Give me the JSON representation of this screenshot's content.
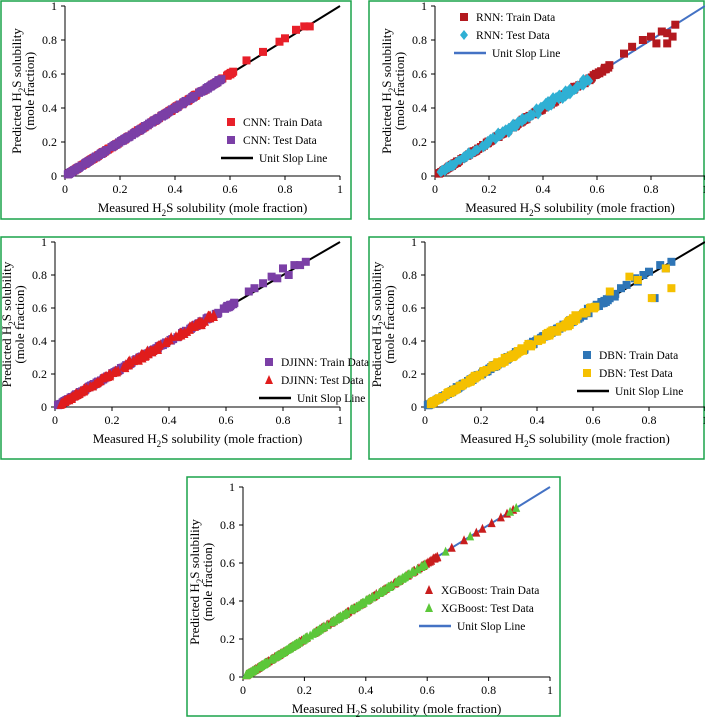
{
  "figure": {
    "xlabel_prefix": "Measured H",
    "xlabel_sub": "2",
    "xlabel_suffix": "S solubility (mole fraction)",
    "ylabel_line1_prefix": "Predicted H",
    "ylabel_line1_sub": "2",
    "ylabel_line1_suffix": "S solubility",
    "ylabel_line2": "(mole fraction)",
    "axis_color": "#000000",
    "frame_color": "#1aa34a"
  },
  "chart_data": [
    {
      "id": "cnn",
      "type": "scatter",
      "xlim": [
        0,
        1
      ],
      "ylim": [
        0,
        1
      ],
      "xticks": [
        "0",
        "0.2",
        "0.4",
        "0.6",
        "0.8",
        "1"
      ],
      "yticks": [
        "0",
        "0.2",
        "0.4",
        "0.6",
        "0.8",
        "1"
      ],
      "tick_values": [
        0,
        0.2,
        0.4,
        0.6,
        0.8,
        1
      ],
      "legend_position": "bottom-right",
      "series": [
        {
          "name": "CNN: Train Data",
          "marker": "square",
          "color": "#e8202a",
          "x_range": [
            0.01,
            0.62
          ],
          "spread": 0.006,
          "extra": [
            [
              0.66,
              0.68
            ],
            [
              0.72,
              0.73
            ],
            [
              0.78,
              0.79
            ],
            [
              0.8,
              0.81
            ],
            [
              0.84,
              0.86
            ],
            [
              0.87,
              0.88
            ],
            [
              0.89,
              0.88
            ]
          ]
        },
        {
          "name": "CNN: Test Data",
          "marker": "square",
          "color": "#7b3fa6",
          "x_range": [
            0.01,
            0.58
          ],
          "spread": 0.006,
          "extra": []
        },
        {
          "name": "Unit Slop Line",
          "marker": "line",
          "color": "#000000",
          "points": [
            [
              0,
              0
            ],
            [
              1,
              1
            ]
          ]
        }
      ]
    },
    {
      "id": "rnn",
      "type": "scatter",
      "xlim": [
        0,
        1
      ],
      "ylim": [
        0,
        1
      ],
      "xticks": [
        "0",
        "0.2",
        "0.4",
        "0.6",
        "0.8",
        "1"
      ],
      "yticks": [
        "0",
        "0.2",
        "0.4",
        "0.6",
        "0.8",
        "1"
      ],
      "tick_values": [
        0,
        0.2,
        0.4,
        0.6,
        0.8,
        1
      ],
      "legend_position": "top-left",
      "series": [
        {
          "name": "RNN: Train Data",
          "marker": "square",
          "color": "#b3191f",
          "x_range": [
            0.01,
            0.65
          ],
          "spread": 0.01,
          "extra": [
            [
              0.7,
              0.72
            ],
            [
              0.73,
              0.76
            ],
            [
              0.77,
              0.8
            ],
            [
              0.8,
              0.82
            ],
            [
              0.82,
              0.78
            ],
            [
              0.84,
              0.85
            ],
            [
              0.86,
              0.84
            ],
            [
              0.88,
              0.82
            ],
            [
              0.89,
              0.89
            ],
            [
              0.86,
              0.78
            ]
          ]
        },
        {
          "name": "RNN: Test Data",
          "marker": "diamond",
          "color": "#2fb0d4",
          "x_range": [
            0.02,
            0.58
          ],
          "spread": 0.035,
          "extra": []
        },
        {
          "name": "Unit Slop Line",
          "marker": "line",
          "color": "#4472c4",
          "points": [
            [
              0,
              0
            ],
            [
              1,
              1
            ]
          ]
        }
      ]
    },
    {
      "id": "djinn",
      "type": "scatter",
      "xlim": [
        0,
        1
      ],
      "ylim": [
        0,
        1
      ],
      "xticks": [
        "0",
        "0.2",
        "0.4",
        "0.6",
        "0.8",
        "1"
      ],
      "yticks": [
        "0",
        "0.2",
        "0.4",
        "0.6",
        "0.8",
        "1"
      ],
      "tick_values": [
        0,
        0.2,
        0.4,
        0.6,
        0.8,
        1
      ],
      "legend_position": "bottom-right",
      "series": [
        {
          "name": "DJINN: Train Data",
          "marker": "square",
          "color": "#7b3fa6",
          "x_range": [
            0.01,
            0.65
          ],
          "spread": 0.01,
          "extra": [
            [
              0.68,
              0.7
            ],
            [
              0.7,
              0.72
            ],
            [
              0.73,
              0.75
            ],
            [
              0.76,
              0.79
            ],
            [
              0.78,
              0.78
            ],
            [
              0.8,
              0.84
            ],
            [
              0.82,
              0.8
            ],
            [
              0.84,
              0.86
            ],
            [
              0.86,
              0.86
            ],
            [
              0.88,
              0.88
            ]
          ]
        },
        {
          "name": "DJINN: Test Data",
          "marker": "triangle",
          "color": "#e01c1c",
          "x_range": [
            0.02,
            0.56
          ],
          "spread": 0.03,
          "extra": []
        },
        {
          "name": "Unit Slop Line",
          "marker": "line",
          "color": "#000000",
          "points": [
            [
              0,
              0
            ],
            [
              1,
              1
            ]
          ]
        }
      ]
    },
    {
      "id": "dbn",
      "type": "scatter",
      "xlim": [
        0,
        1
      ],
      "ylim": [
        0,
        1
      ],
      "xticks": [
        "0",
        "0.2",
        "0.4",
        "0.6",
        "0.8",
        "1"
      ],
      "yticks": [
        "0",
        "0.2",
        "0.4",
        "0.6",
        "0.8",
        "1"
      ],
      "tick_values": [
        0,
        0.2,
        0.4,
        0.6,
        0.8,
        1
      ],
      "legend_position": "bottom-right",
      "series": [
        {
          "name": "DBN: Train Data",
          "marker": "square",
          "color": "#2e75b6",
          "x_range": [
            0.01,
            0.68
          ],
          "spread": 0.018,
          "extra": [
            [
              0.7,
              0.72
            ],
            [
              0.72,
              0.74
            ],
            [
              0.75,
              0.78
            ],
            [
              0.78,
              0.8
            ],
            [
              0.8,
              0.82
            ],
            [
              0.82,
              0.66
            ],
            [
              0.84,
              0.86
            ],
            [
              0.86,
              0.84
            ],
            [
              0.88,
              0.88
            ],
            [
              0.76,
              0.76
            ]
          ]
        },
        {
          "name": "DBN: Test Data",
          "marker": "square",
          "color": "#f5c000",
          "x_range": [
            0.02,
            0.62
          ],
          "spread": 0.022,
          "extra": [
            [
              0.66,
              0.7
            ],
            [
              0.73,
              0.79
            ],
            [
              0.76,
              0.77
            ],
            [
              0.81,
              0.66
            ],
            [
              0.86,
              0.84
            ],
            [
              0.88,
              0.72
            ]
          ]
        },
        {
          "name": "Unit Slop Line",
          "marker": "line",
          "color": "#000000",
          "points": [
            [
              0,
              0
            ],
            [
              1,
              1
            ]
          ]
        }
      ]
    },
    {
      "id": "xgboost",
      "type": "scatter",
      "xlim": [
        0,
        1
      ],
      "ylim": [
        0,
        1
      ],
      "xticks": [
        "0",
        "0.2",
        "0.4",
        "0.6",
        "0.8",
        "1"
      ],
      "yticks": [
        "0",
        "0.2",
        "0.4",
        "0.6",
        "0.8",
        "1"
      ],
      "tick_values": [
        0,
        0.2,
        0.4,
        0.6,
        0.8,
        1
      ],
      "legend_position": "bottom-right",
      "series": [
        {
          "name": "XGBoost: Train Data",
          "marker": "triangle",
          "color": "#c81d1d",
          "x_range": [
            0.01,
            0.64
          ],
          "spread": 0.004,
          "extra": [
            [
              0.68,
              0.68
            ],
            [
              0.72,
              0.72
            ],
            [
              0.76,
              0.76
            ],
            [
              0.78,
              0.78
            ],
            [
              0.81,
              0.81
            ],
            [
              0.84,
              0.84
            ],
            [
              0.86,
              0.86
            ],
            [
              0.88,
              0.88
            ]
          ]
        },
        {
          "name": "XGBoost: Test Data",
          "marker": "triangle",
          "color": "#5cc73a",
          "x_range": [
            0.01,
            0.6
          ],
          "spread": 0.004,
          "extra": [
            [
              0.66,
              0.66
            ],
            [
              0.74,
              0.74
            ],
            [
              0.87,
              0.87
            ],
            [
              0.89,
              0.89
            ]
          ]
        },
        {
          "name": "Unit Slop Line",
          "marker": "line",
          "color": "#4472c4",
          "points": [
            [
              0,
              0
            ],
            [
              1,
              1
            ]
          ]
        }
      ]
    }
  ]
}
